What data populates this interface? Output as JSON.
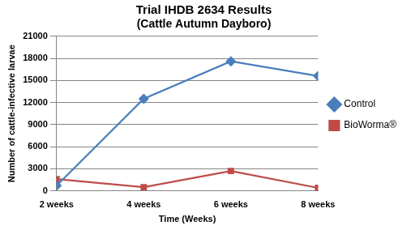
{
  "chart_data": {
    "type": "line",
    "title": "Trial IHDB 2634 Results",
    "subtitle": "(Cattle Autumn Dayboro)",
    "x_label": "Time (Weeks)",
    "y_label": "Number of cattle-infective larvae",
    "categories": [
      "2 weeks",
      "4 weeks",
      "6 weeks",
      "8 weeks"
    ],
    "series": [
      {
        "name": "Control",
        "color": "#4a7ebb",
        "marker": "diamond",
        "line_style": "solid",
        "values": [
          700,
          12500,
          17600,
          15600
        ]
      },
      {
        "name": "BioWorma®",
        "color": "#be4b48",
        "marker": "square",
        "line_style": "solid",
        "values": [
          1600,
          500,
          2700,
          400
        ]
      }
    ],
    "ylim": [
      0,
      21000
    ],
    "yticks": [
      0,
      3000,
      6000,
      9000,
      12000,
      15000,
      18000,
      21000
    ],
    "grid": true,
    "legend": "right"
  }
}
